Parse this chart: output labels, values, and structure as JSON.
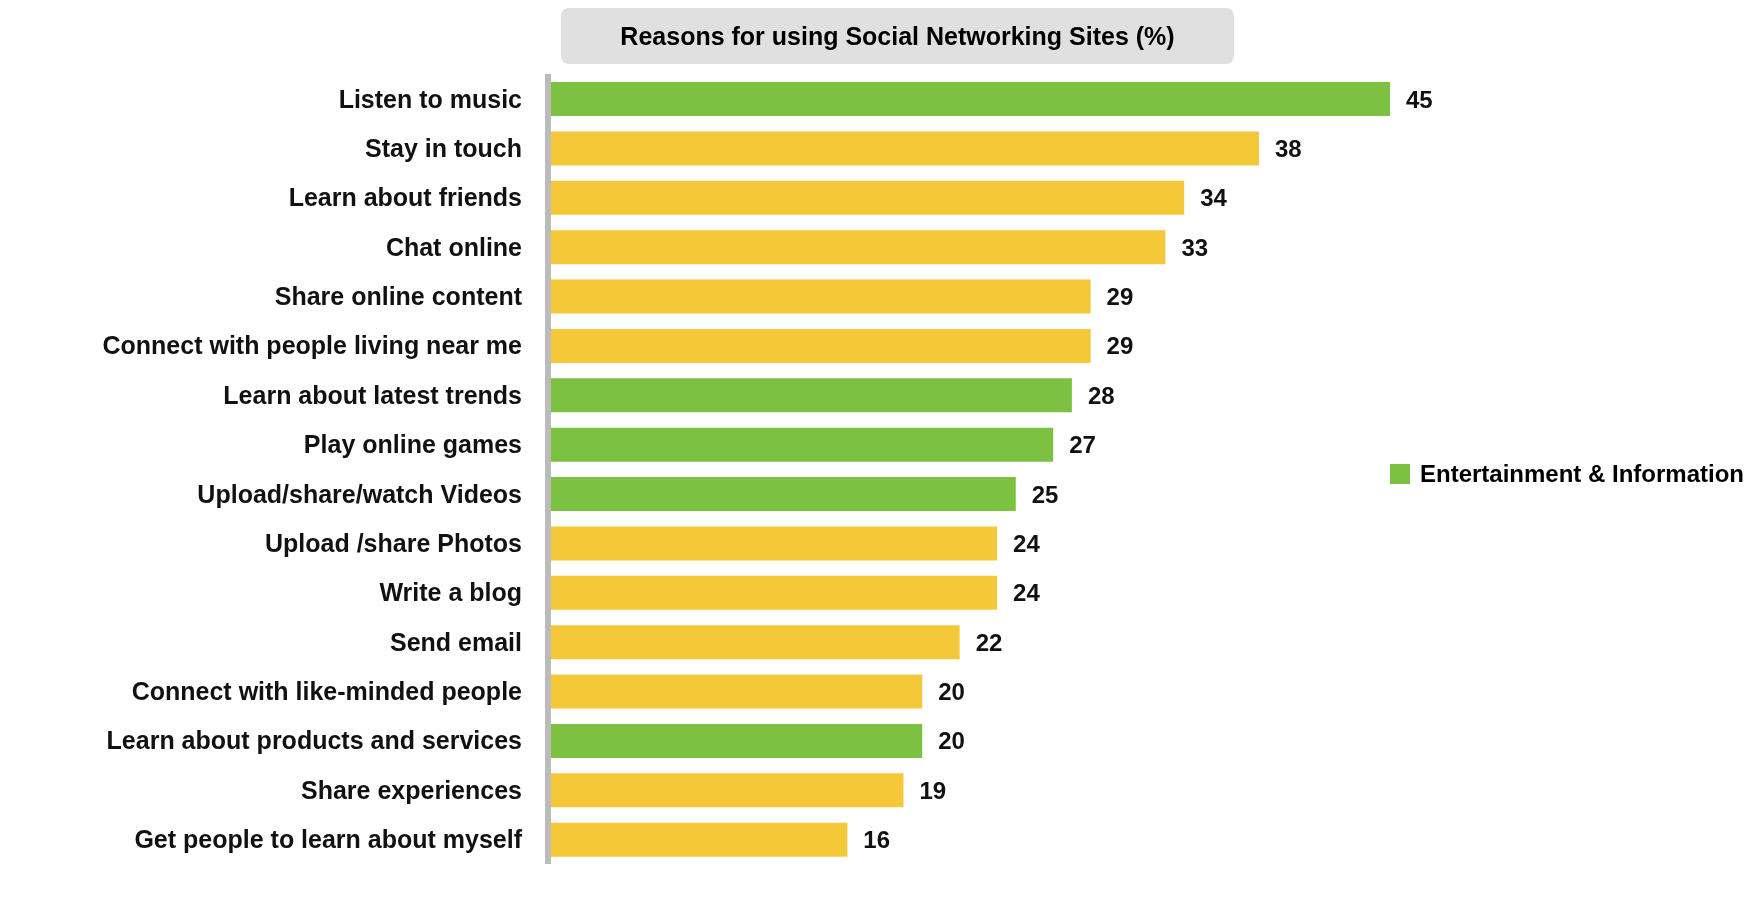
{
  "chart_data": {
    "type": "bar",
    "orientation": "horizontal",
    "stacked": true,
    "title": "Reasons for using Social Networking Sites (%)",
    "categories": [
      "Listen to music",
      "Stay in touch",
      "Learn about friends",
      "Chat online",
      "Share online content",
      "Connect with people living near me",
      "Learn about latest trends",
      "Play online games",
      "Upload/share/watch Videos",
      "Upload /share Photos",
      "Write a blog",
      "Send email",
      "Connect with like-minded people",
      "Learn about products and services",
      "Share experiences",
      "Get people to learn about myself"
    ],
    "series": [
      {
        "name": "Entertainment & Information",
        "color": "#7dc142",
        "values": [
          45,
          null,
          null,
          null,
          null,
          null,
          28,
          27,
          25,
          null,
          null,
          null,
          null,
          20,
          null,
          null
        ]
      },
      {
        "color": "#f5c83a",
        "values": [
          null,
          38,
          34,
          33,
          29,
          29,
          null,
          null,
          null,
          24,
          24,
          22,
          20,
          null,
          19,
          16
        ]
      }
    ],
    "data_labels": true,
    "legend": "right"
  }
}
